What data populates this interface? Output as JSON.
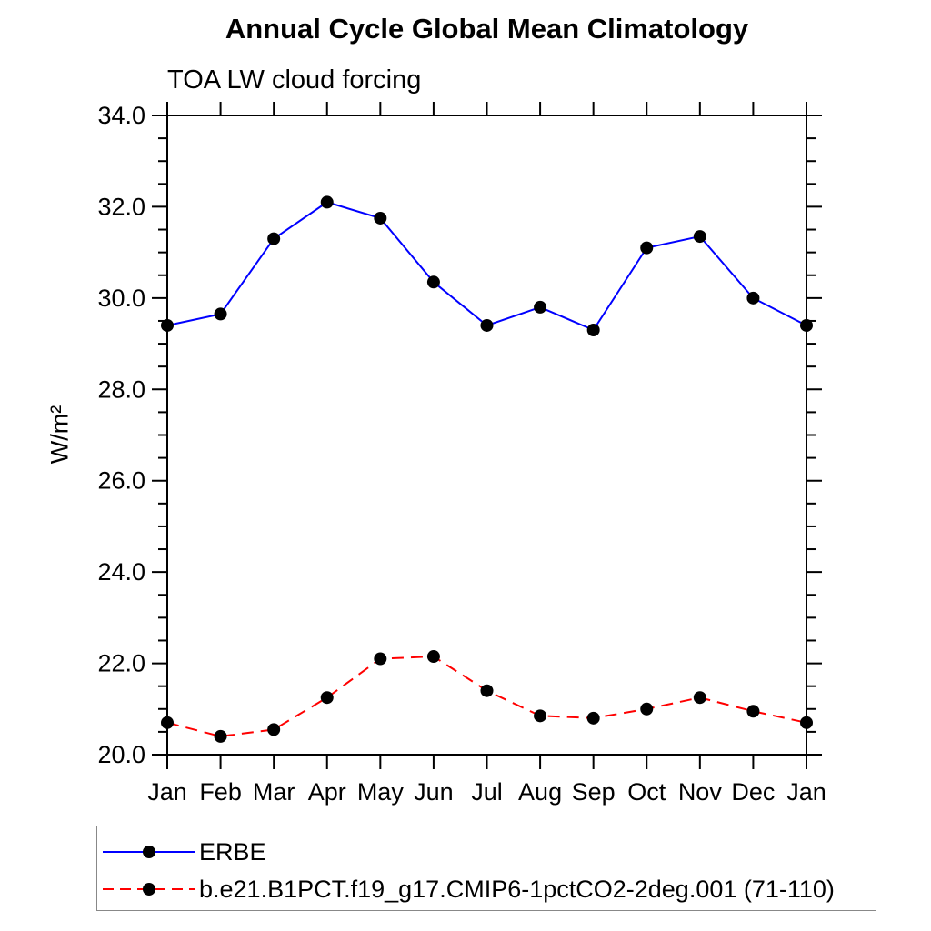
{
  "chart_data": {
    "type": "line",
    "title": "Annual Cycle Global Mean Climatology",
    "subtitle": "TOA LW cloud forcing",
    "ylabel": "W/m²",
    "xlabel": "",
    "x_categories": [
      "Jan",
      "Feb",
      "Mar",
      "Apr",
      "May",
      "Jun",
      "Jul",
      "Aug",
      "Sep",
      "Oct",
      "Nov",
      "Dec",
      "Jan"
    ],
    "ylim": [
      20.0,
      34.0
    ],
    "ytick_major_interval": 2.0,
    "ytick_minor_interval": 0.5,
    "ytick_labels": [
      "20.0",
      "22.0",
      "24.0",
      "26.0",
      "28.0",
      "30.0",
      "32.0",
      "34.0"
    ],
    "grid": false,
    "legend_position": "bottom",
    "frame_color": "#000000",
    "series": [
      {
        "name": "ERBE",
        "color": "#0000ff",
        "line_style": "solid",
        "marker": "circle",
        "marker_color": "#000000",
        "values": [
          29.4,
          29.65,
          31.3,
          32.1,
          31.75,
          30.35,
          29.4,
          29.8,
          29.3,
          31.1,
          31.35,
          30.0,
          29.4
        ]
      },
      {
        "name": "b.e21.B1PCT.f19_g17.CMIP6-1pctCO2-2deg.001 (71-110)",
        "color": "#ff0000",
        "line_style": "dashed",
        "marker": "circle",
        "marker_color": "#000000",
        "values": [
          20.7,
          20.4,
          20.55,
          21.25,
          22.1,
          22.15,
          21.4,
          20.85,
          20.8,
          21.0,
          21.25,
          20.95,
          20.7
        ]
      }
    ]
  }
}
